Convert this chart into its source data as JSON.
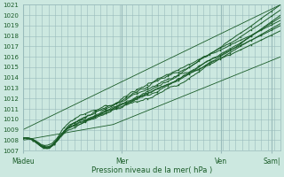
{
  "xlabel": "Pression niveau de la mer( hPa )",
  "ylim": [
    1007,
    1021
  ],
  "yticks": [
    1007,
    1008,
    1009,
    1010,
    1011,
    1012,
    1013,
    1014,
    1015,
    1016,
    1017,
    1018,
    1019,
    1020,
    1021
  ],
  "xtick_labels": [
    "Màdeu",
    "Mer",
    "Ven",
    "Sam|"
  ],
  "xtick_positions": [
    0.0,
    0.385,
    0.77,
    0.965
  ],
  "bg_color": "#cce8e0",
  "grid_color": "#99bbbb",
  "line_color": "#1a5c28",
  "n_points": 200
}
